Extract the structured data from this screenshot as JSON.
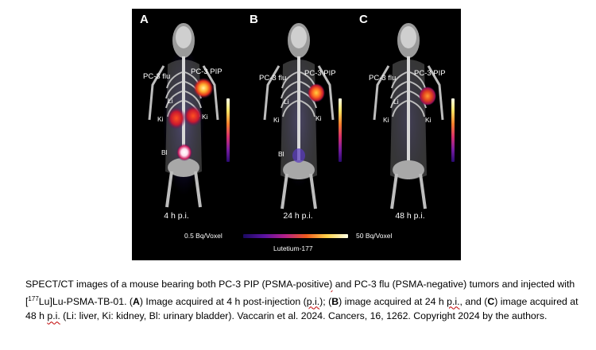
{
  "figure": {
    "panels": [
      {
        "letter": "A",
        "time": "4 h p.i.",
        "flu": "PC-3 flu",
        "pip": "PC-3 PIP",
        "li": "Li",
        "ki_left": "Ki",
        "ki_right": "Ki",
        "bl": "Bl"
      },
      {
        "letter": "B",
        "time": "24 h p.i.",
        "flu": "PC-3 flu",
        "pip": "PC-3 PIP",
        "li": "Li",
        "ki_left": "Ki",
        "ki_right": "Ki",
        "bl": "Bl"
      },
      {
        "letter": "C",
        "time": "48 h p.i.",
        "flu": "PC-3 flu",
        "pip": "PC-3 PIP",
        "li": "Li",
        "ki_left": "Ki",
        "ki_right": "Ki"
      }
    ],
    "scale_min": "0.5 Bq/Voxel",
    "scale_max": "50 Bq/Voxel",
    "isotope": "Lutetium-177",
    "colormap": [
      "#1a0a60",
      "#5a12a0",
      "#b5208a",
      "#ef5a1e",
      "#ffd34a",
      "#ffffe6"
    ]
  },
  "caption": {
    "p1": "SPECT/CT images of a mouse bearing both PC-3 PIP (PSMA-positive",
    "p2": ")",
    "p3": " and PC-3 flu (PSMA-negative) tumors and injected with [",
    "sup": "177",
    "p4": "Lu]Lu-PSMA-TB-01. (",
    "a": "A",
    "p5": ") Image acquired at 4 h post-injection (",
    "pi1": "p.i.",
    "p6": "); (",
    "b": "B",
    "p7": ") image acquired at 24 h ",
    "pi2": "p.i.",
    "p8": ", and (",
    "c": "C",
    "p9": ") image acquired at 48 h ",
    "pi3": "p.i.",
    "p10": " (Li: liver, Ki: kidney, Bl: urinary bladder). Vaccarin et al. 2024. Cancers, 16, 1262. Copyright 2024 by the authors."
  }
}
